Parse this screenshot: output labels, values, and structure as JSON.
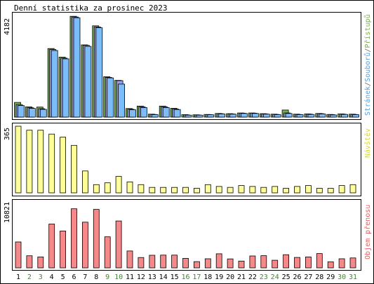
{
  "chart_data": [
    {
      "type": "bar",
      "title": "Denní statistika za prosinec 2023",
      "ylabel": "4182",
      "legend_text": "Stránek/Souborů/Přístupů",
      "legend_parts": [
        {
          "name": "Stránek",
          "color": "#5aa0e0"
        },
        {
          "name": "/",
          "color": "#666666"
        },
        {
          "name": "Souborů",
          "color": "#5aa0e0"
        },
        {
          "name": "/",
          "color": "#666666"
        },
        {
          "name": "Přístupů",
          "color": "#78b04a"
        }
      ],
      "ylim": [
        0,
        4182
      ],
      "categories": [
        "1",
        "2",
        "3",
        "4",
        "5",
        "6",
        "7",
        "8",
        "9",
        "10",
        "11",
        "12",
        "13",
        "14",
        "15",
        "16",
        "17",
        "18",
        "19",
        "20",
        "21",
        "22",
        "23",
        "24",
        "25",
        "26",
        "27",
        "28",
        "29",
        "30",
        "31"
      ],
      "series": [
        {
          "name": "Přístupů",
          "color": "#6fae4f",
          "values": [
            600,
            420,
            410,
            2800,
            2450,
            4120,
            2950,
            3730,
            1650,
            1500,
            350,
            450,
            120,
            450,
            360,
            100,
            95,
            110,
            150,
            140,
            170,
            170,
            140,
            120,
            290,
            120,
            130,
            150,
            110,
            130,
            120
          ]
        },
        {
          "name": "Souborů",
          "color": "#9a9ae8",
          "values": [
            510,
            380,
            340,
            2760,
            2410,
            4090,
            2930,
            3680,
            1620,
            1490,
            320,
            420,
            110,
            420,
            330,
            90,
            85,
            100,
            140,
            130,
            160,
            160,
            130,
            110,
            170,
            110,
            120,
            140,
            100,
            120,
            110
          ]
        },
        {
          "name": "Stránek",
          "color": "#7cbcf8",
          "values": [
            470,
            355,
            315,
            2720,
            2380,
            4060,
            2890,
            3650,
            1600,
            1350,
            300,
            390,
            100,
            390,
            310,
            80,
            80,
            95,
            130,
            120,
            150,
            150,
            120,
            100,
            150,
            100,
            110,
            130,
            90,
            110,
            100
          ]
        }
      ]
    },
    {
      "type": "bar",
      "ylabel": "365",
      "legend_text": "Návštěv",
      "legend_color": "#d8d830",
      "ylim": [
        0,
        365
      ],
      "categories": [
        "1",
        "2",
        "3",
        "4",
        "5",
        "6",
        "7",
        "8",
        "9",
        "10",
        "11",
        "12",
        "13",
        "14",
        "15",
        "16",
        "17",
        "18",
        "19",
        "20",
        "21",
        "22",
        "23",
        "24",
        "25",
        "26",
        "27",
        "28",
        "29",
        "30",
        "31"
      ],
      "series": [
        {
          "name": "Návštěv",
          "color": "#ffff99",
          "values": [
            365,
            343,
            343,
            322,
            305,
            260,
            120,
            45,
            55,
            90,
            60,
            45,
            30,
            30,
            30,
            30,
            25,
            45,
            35,
            30,
            40,
            35,
            30,
            35,
            25,
            35,
            40,
            25,
            25,
            40,
            45
          ]
        }
      ]
    },
    {
      "type": "bar",
      "ylabel": "10821",
      "legend_text": "Objem přenosu",
      "legend_color": "#e06060",
      "ylim": [
        0,
        10821
      ],
      "categories": [
        "1",
        "2",
        "3",
        "4",
        "5",
        "6",
        "7",
        "8",
        "9",
        "10",
        "11",
        "12",
        "13",
        "14",
        "15",
        "16",
        "17",
        "18",
        "19",
        "20",
        "21",
        "22",
        "23",
        "24",
        "25",
        "26",
        "27",
        "28",
        "29",
        "30",
        "31"
      ],
      "series": [
        {
          "name": "Objem přenosu",
          "color": "#f58888",
          "values": [
            4260,
            1990,
            1800,
            7200,
            6050,
            9700,
            7500,
            9600,
            5100,
            7700,
            2780,
            1700,
            2070,
            2090,
            2100,
            1560,
            1020,
            1500,
            2310,
            1470,
            1120,
            1960,
            2000,
            1260,
            2160,
            1720,
            1800,
            2350,
            1000,
            1500,
            1630
          ]
        }
      ],
      "x_tick_colors": [
        "#000000",
        "#3a8a2a",
        "#3a8a2a",
        "#000000",
        "#000000",
        "#000000",
        "#000000",
        "#000000",
        "#3a8a2a",
        "#3a8a2a",
        "#000000",
        "#000000",
        "#000000",
        "#000000",
        "#000000",
        "#3a8a2a",
        "#3a8a2a",
        "#000000",
        "#000000",
        "#000000",
        "#000000",
        "#000000",
        "#3a8a2a",
        "#3a8a2a",
        "#000000",
        "#000000",
        "#000000",
        "#000000",
        "#000000",
        "#3a8a2a",
        "#3a8a2a"
      ]
    }
  ]
}
